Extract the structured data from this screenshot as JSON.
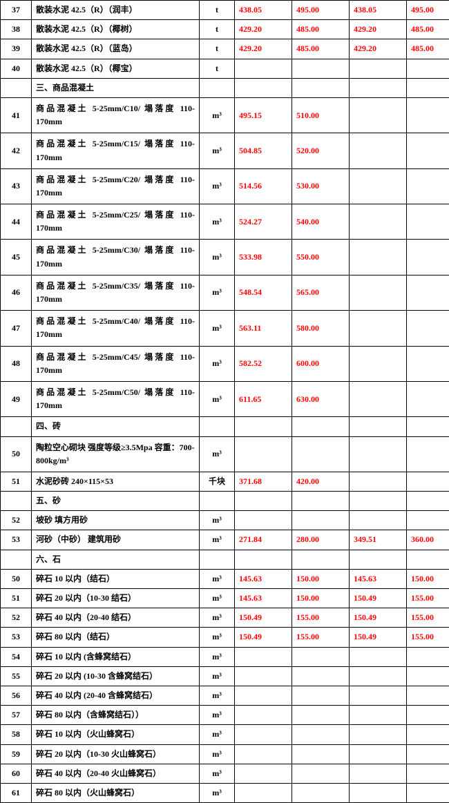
{
  "colors": {
    "accent": "#ff0000",
    "border": "#000000",
    "background": "#ffffff"
  },
  "columns": [
    "id",
    "name",
    "unit",
    "v1",
    "v2",
    "v3",
    "v4"
  ],
  "rows": [
    {
      "id": "37",
      "name": "散装水泥 42.5（R）（润丰）",
      "unit": "t",
      "v1": "438.05",
      "v2": "495.00",
      "v3": "438.05",
      "v4": "495.00",
      "red": true
    },
    {
      "id": "38",
      "name": "散装水泥 42.5（R）（椰树）",
      "unit": "t",
      "v1": "429.20",
      "v2": "485.00",
      "v3": "429.20",
      "v4": "485.00",
      "red": true
    },
    {
      "id": "39",
      "name": "散装水泥 42.5（R）（蓝岛）",
      "unit": "t",
      "v1": "429.20",
      "v2": "485.00",
      "v3": "429.20",
      "v4": "485.00",
      "red": true
    },
    {
      "id": "40",
      "name": "散装水泥 42.5（R）（椰宝）",
      "unit": "t",
      "v1": "",
      "v2": "",
      "v3": "",
      "v4": ""
    },
    {
      "id": "",
      "name": "三、商品混凝土",
      "unit": "",
      "v1": "",
      "v2": "",
      "v3": "",
      "v4": ""
    },
    {
      "id": "41",
      "name": "商品混凝土 5-25mm/C10/ 塌落度 110-170mm",
      "unit": "m³",
      "v1": "495.15",
      "v2": "510.00",
      "v3": "",
      "v4": "",
      "red": true,
      "justify": true,
      "tall": true
    },
    {
      "id": "42",
      "name": "商品混凝土 5-25mm/C15/ 塌落度 110-170mm",
      "unit": "m³",
      "v1": "504.85",
      "v2": "520.00",
      "v3": "",
      "v4": "",
      "red": true,
      "justify": true,
      "tall": true
    },
    {
      "id": "43",
      "name": "商品混凝土 5-25mm/C20/ 塌落度 110-170mm",
      "unit": "m³",
      "v1": "514.56",
      "v2": "530.00",
      "v3": "",
      "v4": "",
      "red": true,
      "justify": true,
      "tall": true
    },
    {
      "id": "44",
      "name": "商品混凝土 5-25mm/C25/ 塌落度 110-170mm",
      "unit": "m³",
      "v1": "524.27",
      "v2": "540.00",
      "v3": "",
      "v4": "",
      "red": true,
      "justify": true,
      "tall": true
    },
    {
      "id": "45",
      "name": "商品混凝土 5-25mm/C30/ 塌落度 110-170mm",
      "unit": "m³",
      "v1": "533.98",
      "v2": "550.00",
      "v3": "",
      "v4": "",
      "red": true,
      "justify": true,
      "tall": true
    },
    {
      "id": "46",
      "name": "商品混凝土 5-25mm/C35/ 塌落度 110-170mm",
      "unit": "m³",
      "v1": "548.54",
      "v2": "565.00",
      "v3": "",
      "v4": "",
      "red": true,
      "justify": true,
      "tall": true
    },
    {
      "id": "47",
      "name": "商品混凝土 5-25mm/C40/ 塌落度 110-170mm",
      "unit": "m³",
      "v1": "563.11",
      "v2": "580.00",
      "v3": "",
      "v4": "",
      "red": true,
      "justify": true,
      "tall": true
    },
    {
      "id": "48",
      "name": "商品混凝土 5-25mm/C45/ 塌落度 110-170mm",
      "unit": "m³",
      "v1": "582.52",
      "v2": "600.00",
      "v3": "",
      "v4": "",
      "red": true,
      "justify": true,
      "tall": true
    },
    {
      "id": "49",
      "name": "商品混凝土 5-25mm/C50/ 塌落度 110-170mm",
      "unit": "m³",
      "v1": "611.65",
      "v2": "630.00",
      "v3": "",
      "v4": "",
      "red": true,
      "justify": true,
      "tall": true
    },
    {
      "id": "",
      "name": "四、砖",
      "unit": "",
      "v1": "",
      "v2": "",
      "v3": "",
      "v4": ""
    },
    {
      "id": "50",
      "name": "陶粒空心砌块 强度等级≥3.5Mpa 容重：700-800kg/m³",
      "unit": "m³",
      "v1": "",
      "v2": "",
      "v3": "",
      "v4": "",
      "tall": true
    },
    {
      "id": "51",
      "name": "水泥砂砖 240×115×53",
      "unit": "千块",
      "v1": "371.68",
      "v2": "420.00",
      "v3": "",
      "v4": "",
      "red": true
    },
    {
      "id": "",
      "name": "五、砂",
      "unit": "",
      "v1": "",
      "v2": "",
      "v3": "",
      "v4": ""
    },
    {
      "id": "52",
      "name": "坡砂 填方用砂",
      "unit": "m³",
      "v1": "",
      "v2": "",
      "v3": "",
      "v4": ""
    },
    {
      "id": "53",
      "name": "河砂（中砂）  建筑用砂",
      "unit": "m³",
      "v1": "271.84",
      "v2": "280.00",
      "v3": "349.51",
      "v4": "360.00",
      "red": true
    },
    {
      "id": "",
      "name": "六、石",
      "unit": "",
      "v1": "",
      "v2": "",
      "v3": "",
      "v4": ""
    },
    {
      "id": "50",
      "name": "碎石 10 以内（结石）",
      "unit": "m³",
      "v1": "145.63",
      "v2": "150.00",
      "v3": "145.63",
      "v4": "150.00",
      "red": true
    },
    {
      "id": "51",
      "name": "碎石 20 以内（10-30 结石）",
      "unit": "m³",
      "v1": "145.63",
      "v2": "150.00",
      "v3": "150.49",
      "v4": "155.00",
      "red": true
    },
    {
      "id": "52",
      "name": "碎石 40 以内（20-40 结石）",
      "unit": "m³",
      "v1": "150.49",
      "v2": "155.00",
      "v3": "150.49",
      "v4": "155.00",
      "red": true
    },
    {
      "id": "53",
      "name": "碎石 80 以内（结石）",
      "unit": "m³",
      "v1": "150.49",
      "v2": "155.00",
      "v3": "150.49",
      "v4": "155.00",
      "red": true
    },
    {
      "id": "54",
      "name": "碎石 10 以内 (含蜂窝结石）",
      "unit": "m³",
      "v1": "",
      "v2": "",
      "v3": "",
      "v4": ""
    },
    {
      "id": "55",
      "name": "碎石 20 以内 (10-30 含蜂窝结石）",
      "unit": "m³",
      "v1": "",
      "v2": "",
      "v3": "",
      "v4": ""
    },
    {
      "id": "56",
      "name": "碎石 40 以内 (20-40 含蜂窝结石）",
      "unit": "m³",
      "v1": "",
      "v2": "",
      "v3": "",
      "v4": ""
    },
    {
      "id": "57",
      "name": "碎石 80 以内（含蜂窝结石））",
      "unit": "m³",
      "v1": "",
      "v2": "",
      "v3": "",
      "v4": ""
    },
    {
      "id": "58",
      "name": "碎石 10 以内（火山蜂窝石）",
      "unit": "m³",
      "v1": "",
      "v2": "",
      "v3": "",
      "v4": ""
    },
    {
      "id": "59",
      "name": "碎石 20 以内（10-30 火山蜂窝石）",
      "unit": "m³",
      "v1": "",
      "v2": "",
      "v3": "",
      "v4": ""
    },
    {
      "id": "60",
      "name": "碎石 40 以内（20-40 火山蜂窝石）",
      "unit": "m³",
      "v1": "",
      "v2": "",
      "v3": "",
      "v4": ""
    },
    {
      "id": "61",
      "name": "碎石 80 以内（火山蜂窝石）",
      "unit": "m³",
      "v1": "",
      "v2": "",
      "v3": "",
      "v4": ""
    }
  ]
}
